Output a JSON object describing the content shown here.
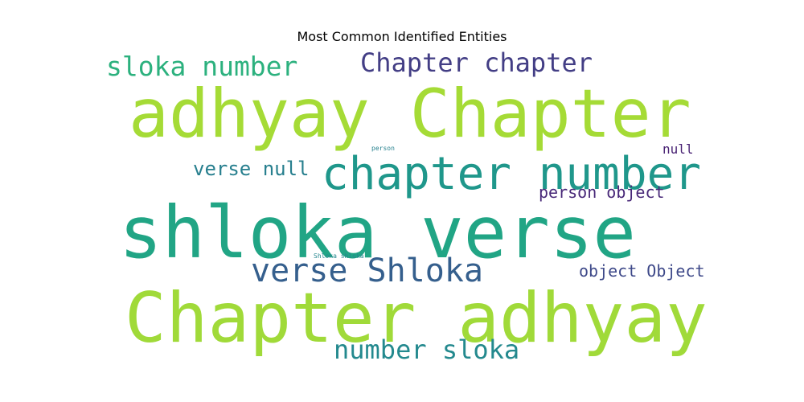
{
  "chart_data": {
    "type": "wordcloud",
    "title": "Most Common Identified Entities",
    "words": [
      {
        "text": "adhyay Chapter",
        "weight": 100,
        "color": "#a5db36"
      },
      {
        "text": "shloka verse",
        "weight": 100,
        "color": "#21a585"
      },
      {
        "text": "Chapter adhyay",
        "weight": 100,
        "color": "#a0da39"
      },
      {
        "text": "chapter number",
        "weight": 57,
        "color": "#1f978b"
      },
      {
        "text": "verse Shloka",
        "weight": 43,
        "color": "#355f8d"
      },
      {
        "text": "sloka number",
        "weight": 34,
        "color": "#2cb17e"
      },
      {
        "text": "Chapter chapter",
        "weight": 34,
        "color": "#433e85"
      },
      {
        "text": "number sloka",
        "weight": 34,
        "color": "#23898e"
      },
      {
        "text": "verse null",
        "weight": 23,
        "color": "#277f8e"
      },
      {
        "text": "person object",
        "weight": 21,
        "color": "#482878"
      },
      {
        "text": "object Object",
        "weight": 21,
        "color": "#3e4989"
      },
      {
        "text": "null",
        "weight": 16,
        "color": "#482173"
      },
      {
        "text": "person",
        "weight": 8,
        "color": "#26818e"
      },
      {
        "text": "Shloka shloka",
        "weight": 8,
        "color": "#24868e"
      }
    ]
  }
}
